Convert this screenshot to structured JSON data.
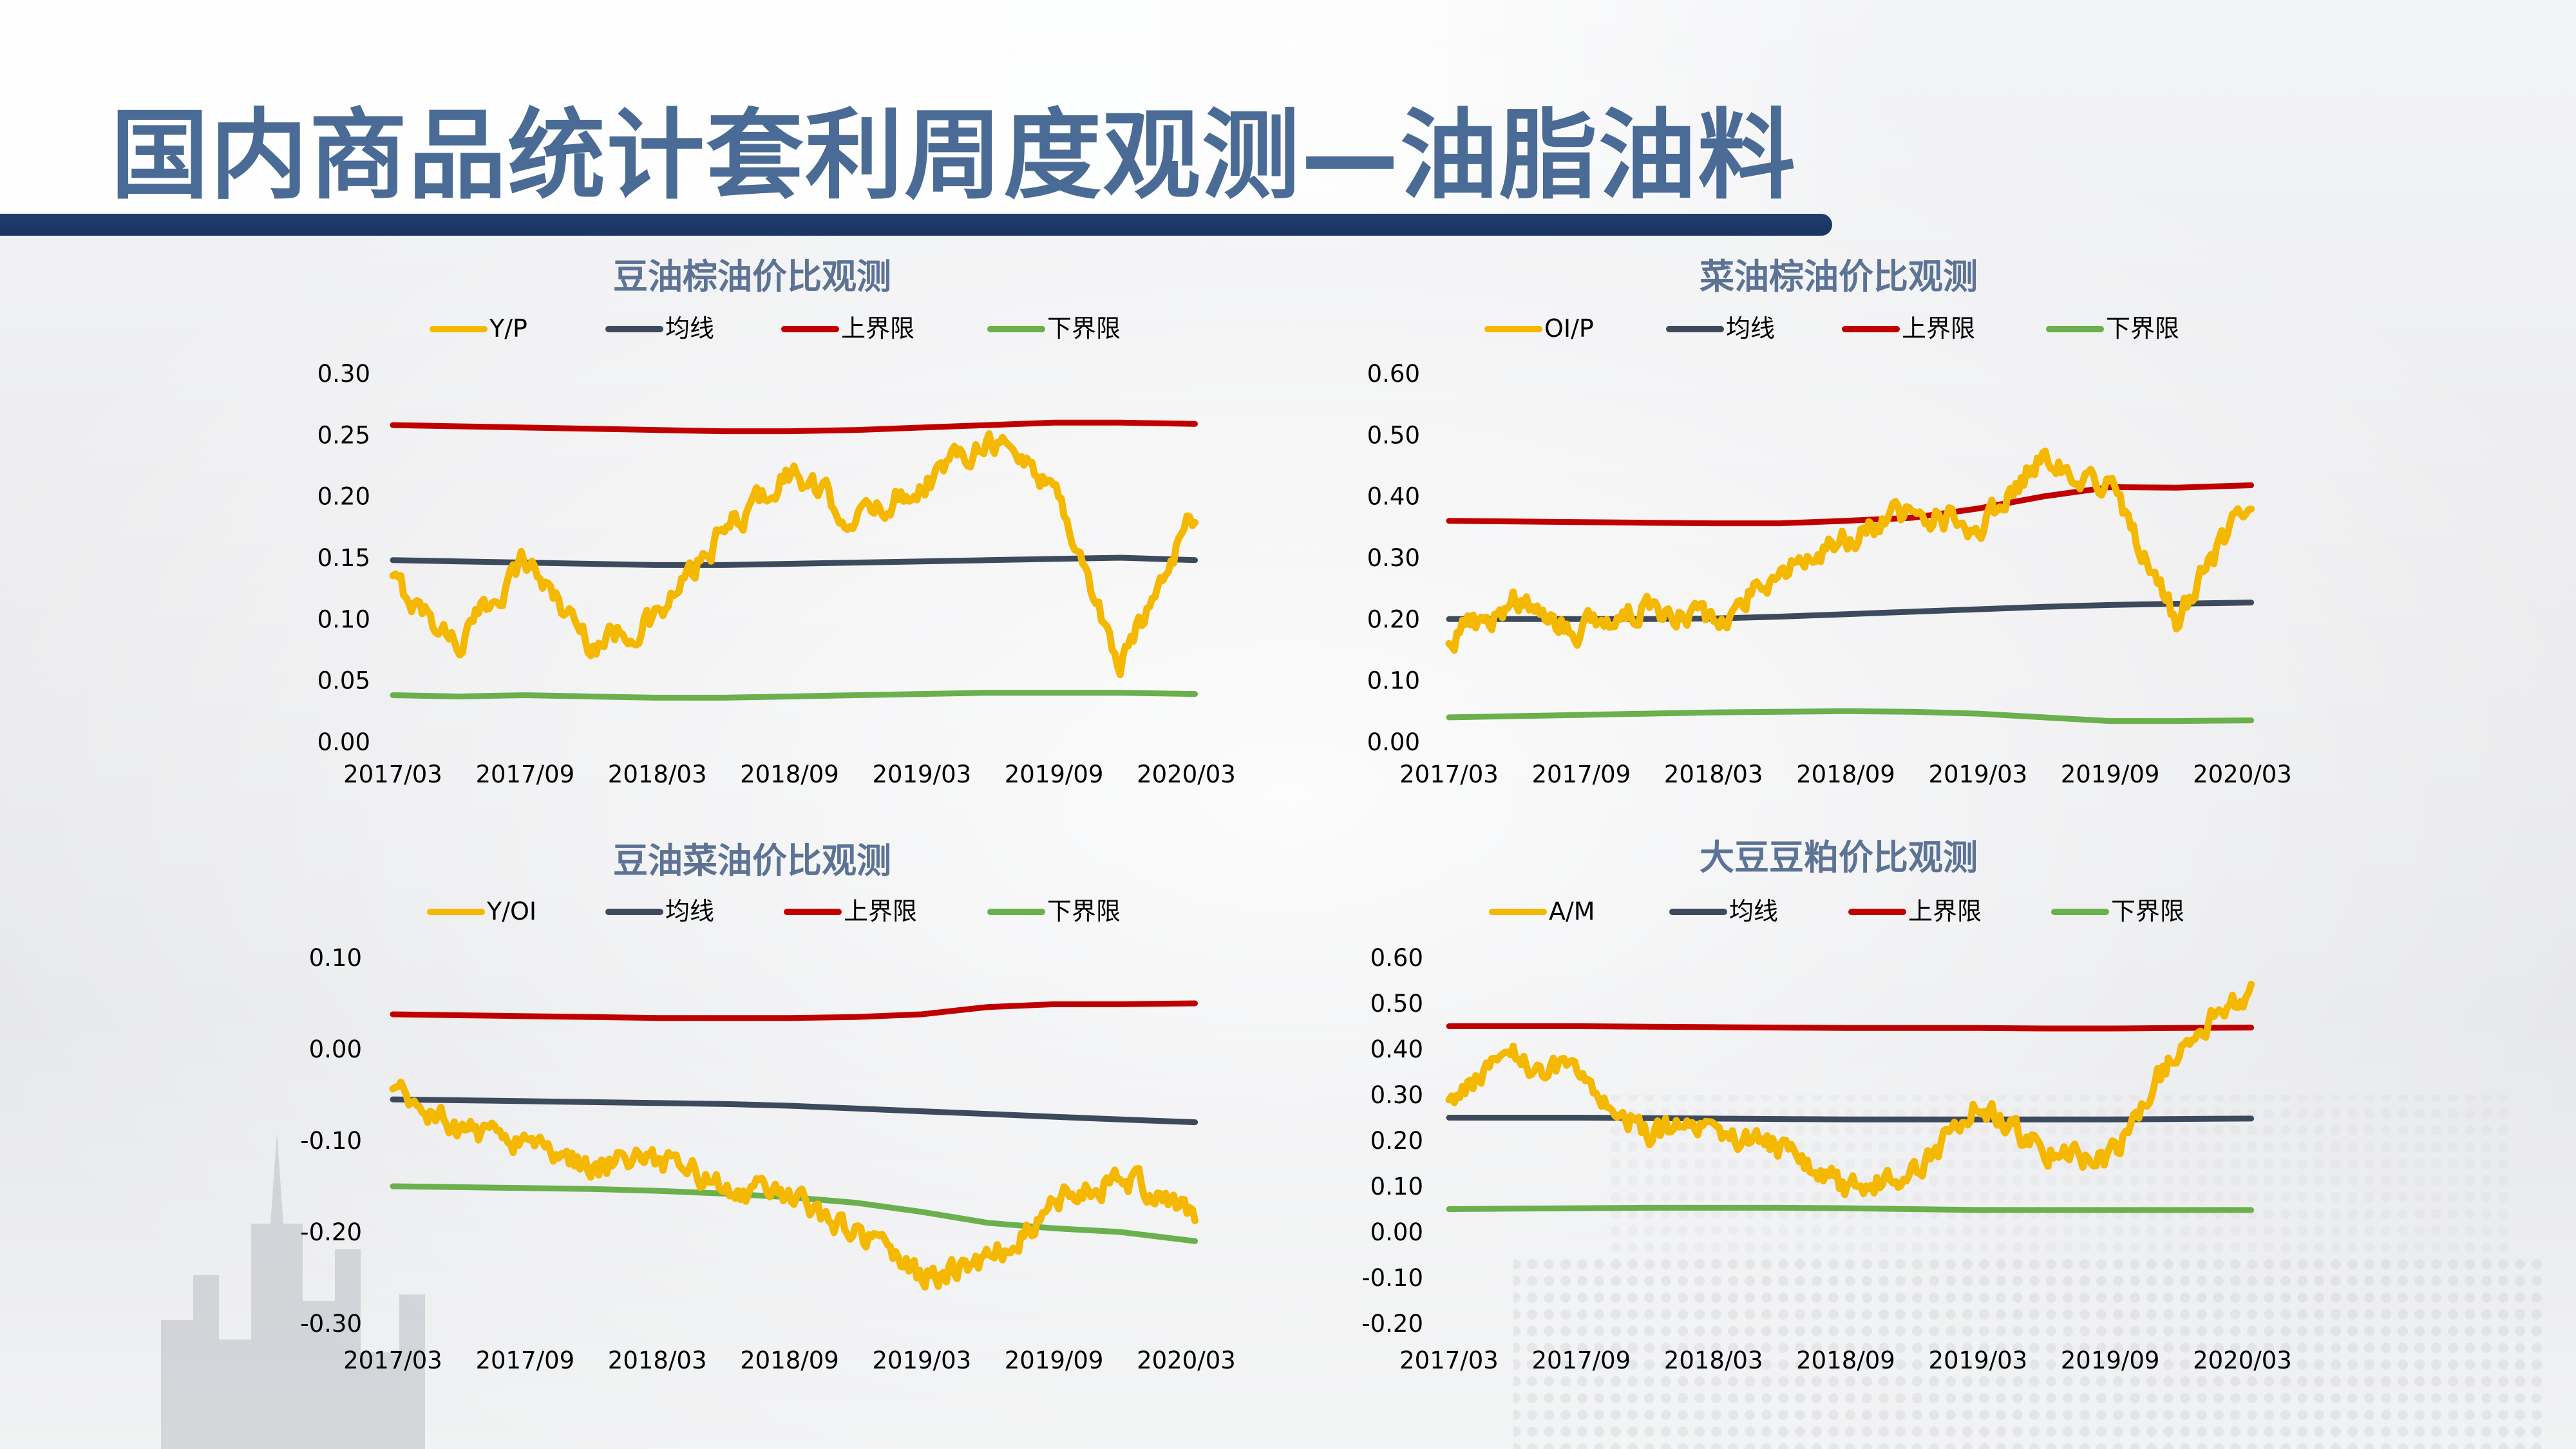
{
  "page": {
    "title": "国内商品统计套利周度观测—油脂油料"
  },
  "colors": {
    "title": "#4a6b95",
    "band": "#1f3d6d",
    "ratio": "#f5b800",
    "mean": "#3d4a5c",
    "upper": "#c00000",
    "lower": "#6ab04c"
  },
  "chart_data": [
    {
      "type": "line",
      "title": "豆油棕油价比观测",
      "ylim": [
        0.0,
        0.3
      ],
      "yticks": [
        "0.30",
        "0.25",
        "0.20",
        "0.15",
        "0.10",
        "0.05",
        "0.00"
      ],
      "xticks": [
        "2017/03",
        "2017/09",
        "2018/03",
        "2018/09",
        "2019/03",
        "2019/09",
        "2020/03"
      ],
      "x": [
        "2017/03",
        "2017/06",
        "2017/09",
        "2017/12",
        "2018/03",
        "2018/06",
        "2018/09",
        "2018/12",
        "2019/03",
        "2019/06",
        "2019/09",
        "2019/12",
        "2020/03"
      ],
      "series": [
        {
          "name": "Y/P",
          "values": [
            0.13,
            0.08,
            0.15,
            0.08,
            0.1,
            0.17,
            0.22,
            0.18,
            0.21,
            0.25,
            0.21,
            0.06,
            0.18
          ]
        },
        {
          "name": "均线",
          "values": [
            0.148,
            0.147,
            0.146,
            0.145,
            0.144,
            0.144,
            0.145,
            0.146,
            0.147,
            0.148,
            0.149,
            0.15,
            0.148
          ]
        },
        {
          "name": "上界限",
          "values": [
            0.258,
            0.257,
            0.256,
            0.255,
            0.254,
            0.253,
            0.253,
            0.254,
            0.256,
            0.258,
            0.26,
            0.26,
            0.259
          ]
        },
        {
          "name": "下界限",
          "values": [
            0.038,
            0.037,
            0.038,
            0.037,
            0.036,
            0.036,
            0.037,
            0.038,
            0.039,
            0.04,
            0.04,
            0.04,
            0.039
          ]
        }
      ]
    },
    {
      "type": "line",
      "title": "菜油棕油价比观测",
      "ylim": [
        0.0,
        0.6
      ],
      "yticks": [
        "0.60",
        "0.50",
        "0.40",
        "0.30",
        "0.20",
        "0.10",
        "0.00"
      ],
      "xticks": [
        "2017/03",
        "2017/09",
        "2018/03",
        "2018/09",
        "2019/03",
        "2019/09",
        "2020/03"
      ],
      "x": [
        "2017/03",
        "2017/06",
        "2017/09",
        "2017/12",
        "2018/03",
        "2018/06",
        "2018/09",
        "2018/12",
        "2019/03",
        "2019/06",
        "2019/09",
        "2019/12",
        "2020/03"
      ],
      "series": [
        {
          "name": "OI/P",
          "values": [
            0.17,
            0.23,
            0.18,
            0.22,
            0.2,
            0.28,
            0.33,
            0.38,
            0.35,
            0.47,
            0.42,
            0.2,
            0.37
          ]
        },
        {
          "name": "均线",
          "values": [
            0.2,
            0.2,
            0.2,
            0.2,
            0.201,
            0.204,
            0.208,
            0.212,
            0.216,
            0.22,
            0.223,
            0.225,
            0.227
          ]
        },
        {
          "name": "上界限",
          "values": [
            0.36,
            0.359,
            0.358,
            0.357,
            0.356,
            0.356,
            0.36,
            0.365,
            0.38,
            0.4,
            0.415,
            0.414,
            0.418
          ]
        },
        {
          "name": "下界限",
          "values": [
            0.04,
            0.042,
            0.044,
            0.046,
            0.048,
            0.049,
            0.05,
            0.049,
            0.046,
            0.04,
            0.034,
            0.034,
            0.035
          ]
        }
      ]
    },
    {
      "type": "line",
      "title": "豆油菜油价比观测",
      "ylim": [
        -0.3,
        0.1
      ],
      "yticks": [
        "0.10",
        "0.00",
        "-0.10",
        "-0.20",
        "-0.30"
      ],
      "xticks": [
        "2017/03",
        "2017/09",
        "2018/03",
        "2018/09",
        "2019/03",
        "2019/09",
        "2020/03"
      ],
      "x": [
        "2017/03",
        "2017/06",
        "2017/09",
        "2017/12",
        "2018/03",
        "2018/06",
        "2018/09",
        "2018/12",
        "2019/03",
        "2019/06",
        "2019/09",
        "2019/12",
        "2020/03"
      ],
      "series": [
        {
          "name": "Y/OI",
          "values": [
            -0.05,
            -0.09,
            -0.1,
            -0.13,
            -0.12,
            -0.15,
            -0.16,
            -0.2,
            -0.25,
            -0.23,
            -0.17,
            -0.14,
            -0.18
          ]
        },
        {
          "name": "均线",
          "values": [
            -0.055,
            -0.056,
            -0.057,
            -0.058,
            -0.059,
            -0.06,
            -0.062,
            -0.065,
            -0.068,
            -0.071,
            -0.074,
            -0.077,
            -0.08
          ]
        },
        {
          "name": "上界限",
          "values": [
            0.038,
            0.037,
            0.036,
            0.035,
            0.034,
            0.034,
            0.034,
            0.035,
            0.038,
            0.046,
            0.049,
            0.049,
            0.05
          ]
        },
        {
          "name": "下界限",
          "values": [
            -0.15,
            -0.151,
            -0.152,
            -0.153,
            -0.155,
            -0.158,
            -0.162,
            -0.168,
            -0.178,
            -0.19,
            -0.196,
            -0.2,
            -0.21
          ]
        }
      ]
    },
    {
      "type": "line",
      "title": "大豆豆粕价比观测",
      "ylim": [
        -0.2,
        0.6
      ],
      "yticks": [
        "0.60",
        "0.50",
        "0.40",
        "0.30",
        "0.20",
        "0.10",
        "0.00",
        "-0.10",
        "-0.20"
      ],
      "xticks": [
        "2017/03",
        "2017/09",
        "2018/03",
        "2018/09",
        "2019/03",
        "2019/09",
        "2020/03"
      ],
      "x": [
        "2017/03",
        "2017/06",
        "2017/09",
        "2017/12",
        "2018/03",
        "2018/06",
        "2018/09",
        "2018/12",
        "2019/03",
        "2019/06",
        "2019/09",
        "2019/12",
        "2020/03"
      ],
      "series": [
        {
          "name": "A/M",
          "values": [
            0.3,
            0.38,
            0.33,
            0.22,
            0.22,
            0.18,
            0.1,
            0.12,
            0.28,
            0.18,
            0.15,
            0.4,
            0.52
          ]
        },
        {
          "name": "均线",
          "values": [
            0.25,
            0.25,
            0.25,
            0.249,
            0.248,
            0.247,
            0.246,
            0.246,
            0.246,
            0.246,
            0.246,
            0.247,
            0.248
          ]
        },
        {
          "name": "上界限",
          "values": [
            0.45,
            0.45,
            0.45,
            0.449,
            0.448,
            0.447,
            0.446,
            0.446,
            0.446,
            0.445,
            0.445,
            0.446,
            0.447
          ]
        },
        {
          "name": "下界限",
          "values": [
            0.05,
            0.051,
            0.052,
            0.053,
            0.053,
            0.053,
            0.052,
            0.05,
            0.048,
            0.048,
            0.048,
            0.048,
            0.048
          ]
        }
      ]
    }
  ]
}
